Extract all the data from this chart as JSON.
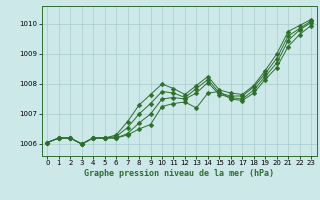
{
  "title": "Graphe pression niveau de la mer (hPa)",
  "bg_color": "#cce8e8",
  "grid_color": "#aacccc",
  "line_color": "#2d6e2d",
  "xlim": [
    -0.5,
    23.5
  ],
  "ylim": [
    1005.6,
    1010.6
  ],
  "yticks": [
    1006,
    1007,
    1008,
    1009,
    1010
  ],
  "xticks": [
    0,
    1,
    2,
    3,
    4,
    5,
    6,
    7,
    8,
    9,
    10,
    11,
    12,
    13,
    14,
    15,
    16,
    17,
    18,
    19,
    20,
    21,
    22,
    23
  ],
  "line1": [
    1006.05,
    1006.2,
    1006.2,
    1006.0,
    1006.2,
    1006.2,
    1006.2,
    1006.3,
    1006.5,
    1006.65,
    1007.25,
    1007.35,
    1007.4,
    1007.2,
    1007.7,
    1007.75,
    1007.5,
    1007.45,
    1007.7,
    1008.15,
    1008.55,
    1009.25,
    1009.65,
    1009.95
  ],
  "line2": [
    1006.05,
    1006.2,
    1006.2,
    1006.0,
    1006.2,
    1006.2,
    1006.2,
    1006.35,
    1006.7,
    1007.0,
    1007.5,
    1007.55,
    1007.5,
    1007.7,
    1008.05,
    1007.65,
    1007.55,
    1007.5,
    1007.8,
    1008.25,
    1008.7,
    1009.45,
    1009.8,
    1010.05
  ],
  "line3": [
    1006.05,
    1006.2,
    1006.2,
    1006.0,
    1006.2,
    1006.2,
    1006.25,
    1006.55,
    1007.0,
    1007.35,
    1007.75,
    1007.7,
    1007.55,
    1007.85,
    1008.15,
    1007.7,
    1007.6,
    1007.6,
    1007.9,
    1008.35,
    1008.85,
    1009.6,
    1009.85,
    1010.1
  ],
  "line4": [
    1006.05,
    1006.2,
    1006.2,
    1006.0,
    1006.2,
    1006.2,
    1006.3,
    1006.75,
    1007.3,
    1007.65,
    1008.0,
    1007.85,
    1007.65,
    1007.95,
    1008.25,
    1007.8,
    1007.7,
    1007.65,
    1007.95,
    1008.45,
    1009.0,
    1009.75,
    1009.95,
    1010.15
  ],
  "marker_size": 2.5,
  "linewidth": 0.7,
  "title_fontsize": 6.0,
  "tick_fontsize": 5.0
}
